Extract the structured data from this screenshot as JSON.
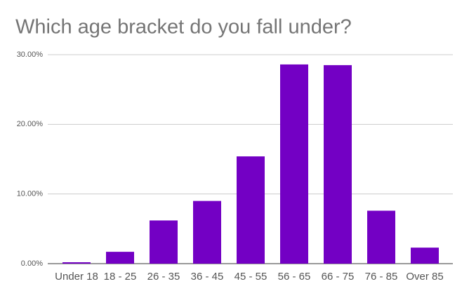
{
  "chart_data": {
    "type": "bar",
    "title": "Which age bracket do you fall under?",
    "categories": [
      "Under 18",
      "18 - 25",
      "26 - 35",
      "36 - 45",
      "45 - 55",
      "56 - 65",
      "66 - 75",
      "76 - 85",
      "Over 85"
    ],
    "values": [
      0.2,
      1.7,
      6.2,
      9.0,
      15.4,
      28.6,
      28.5,
      7.6,
      2.3
    ],
    "color": "#7300c4",
    "ylim": [
      0,
      30
    ],
    "yticks": [
      {
        "value": 0,
        "label": "0.00%"
      },
      {
        "value": 10,
        "label": "10.00%"
      },
      {
        "value": 20,
        "label": "20.00%"
      },
      {
        "value": 30,
        "label": "30.00%"
      }
    ],
    "grid": true
  }
}
